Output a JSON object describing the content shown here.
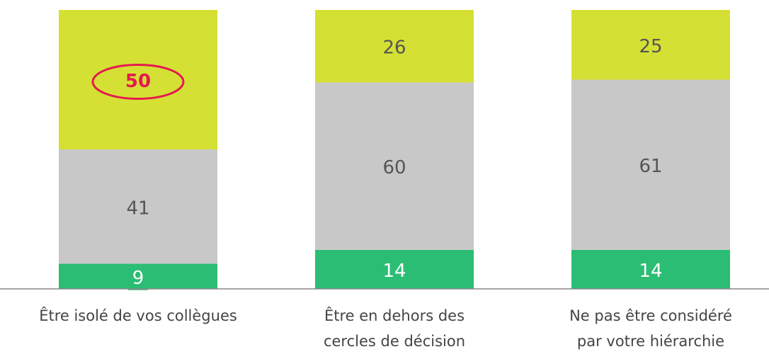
{
  "chart_data": {
    "type": "stacked-bar",
    "categories": [
      "Être isolé de vos collègues",
      "Être en dehors des\ncercles de décision",
      "Ne pas être considéré\npar votre hiérarchie"
    ],
    "series": [
      {
        "color": "#2bbd74",
        "values": [
          9,
          14,
          14
        ]
      },
      {
        "color": "#c8c8c8",
        "values": [
          41,
          60,
          61
        ]
      },
      {
        "color": "#d5e035",
        "values": [
          50,
          26,
          25
        ]
      }
    ],
    "ylim": [
      0,
      100
    ]
  }
}
